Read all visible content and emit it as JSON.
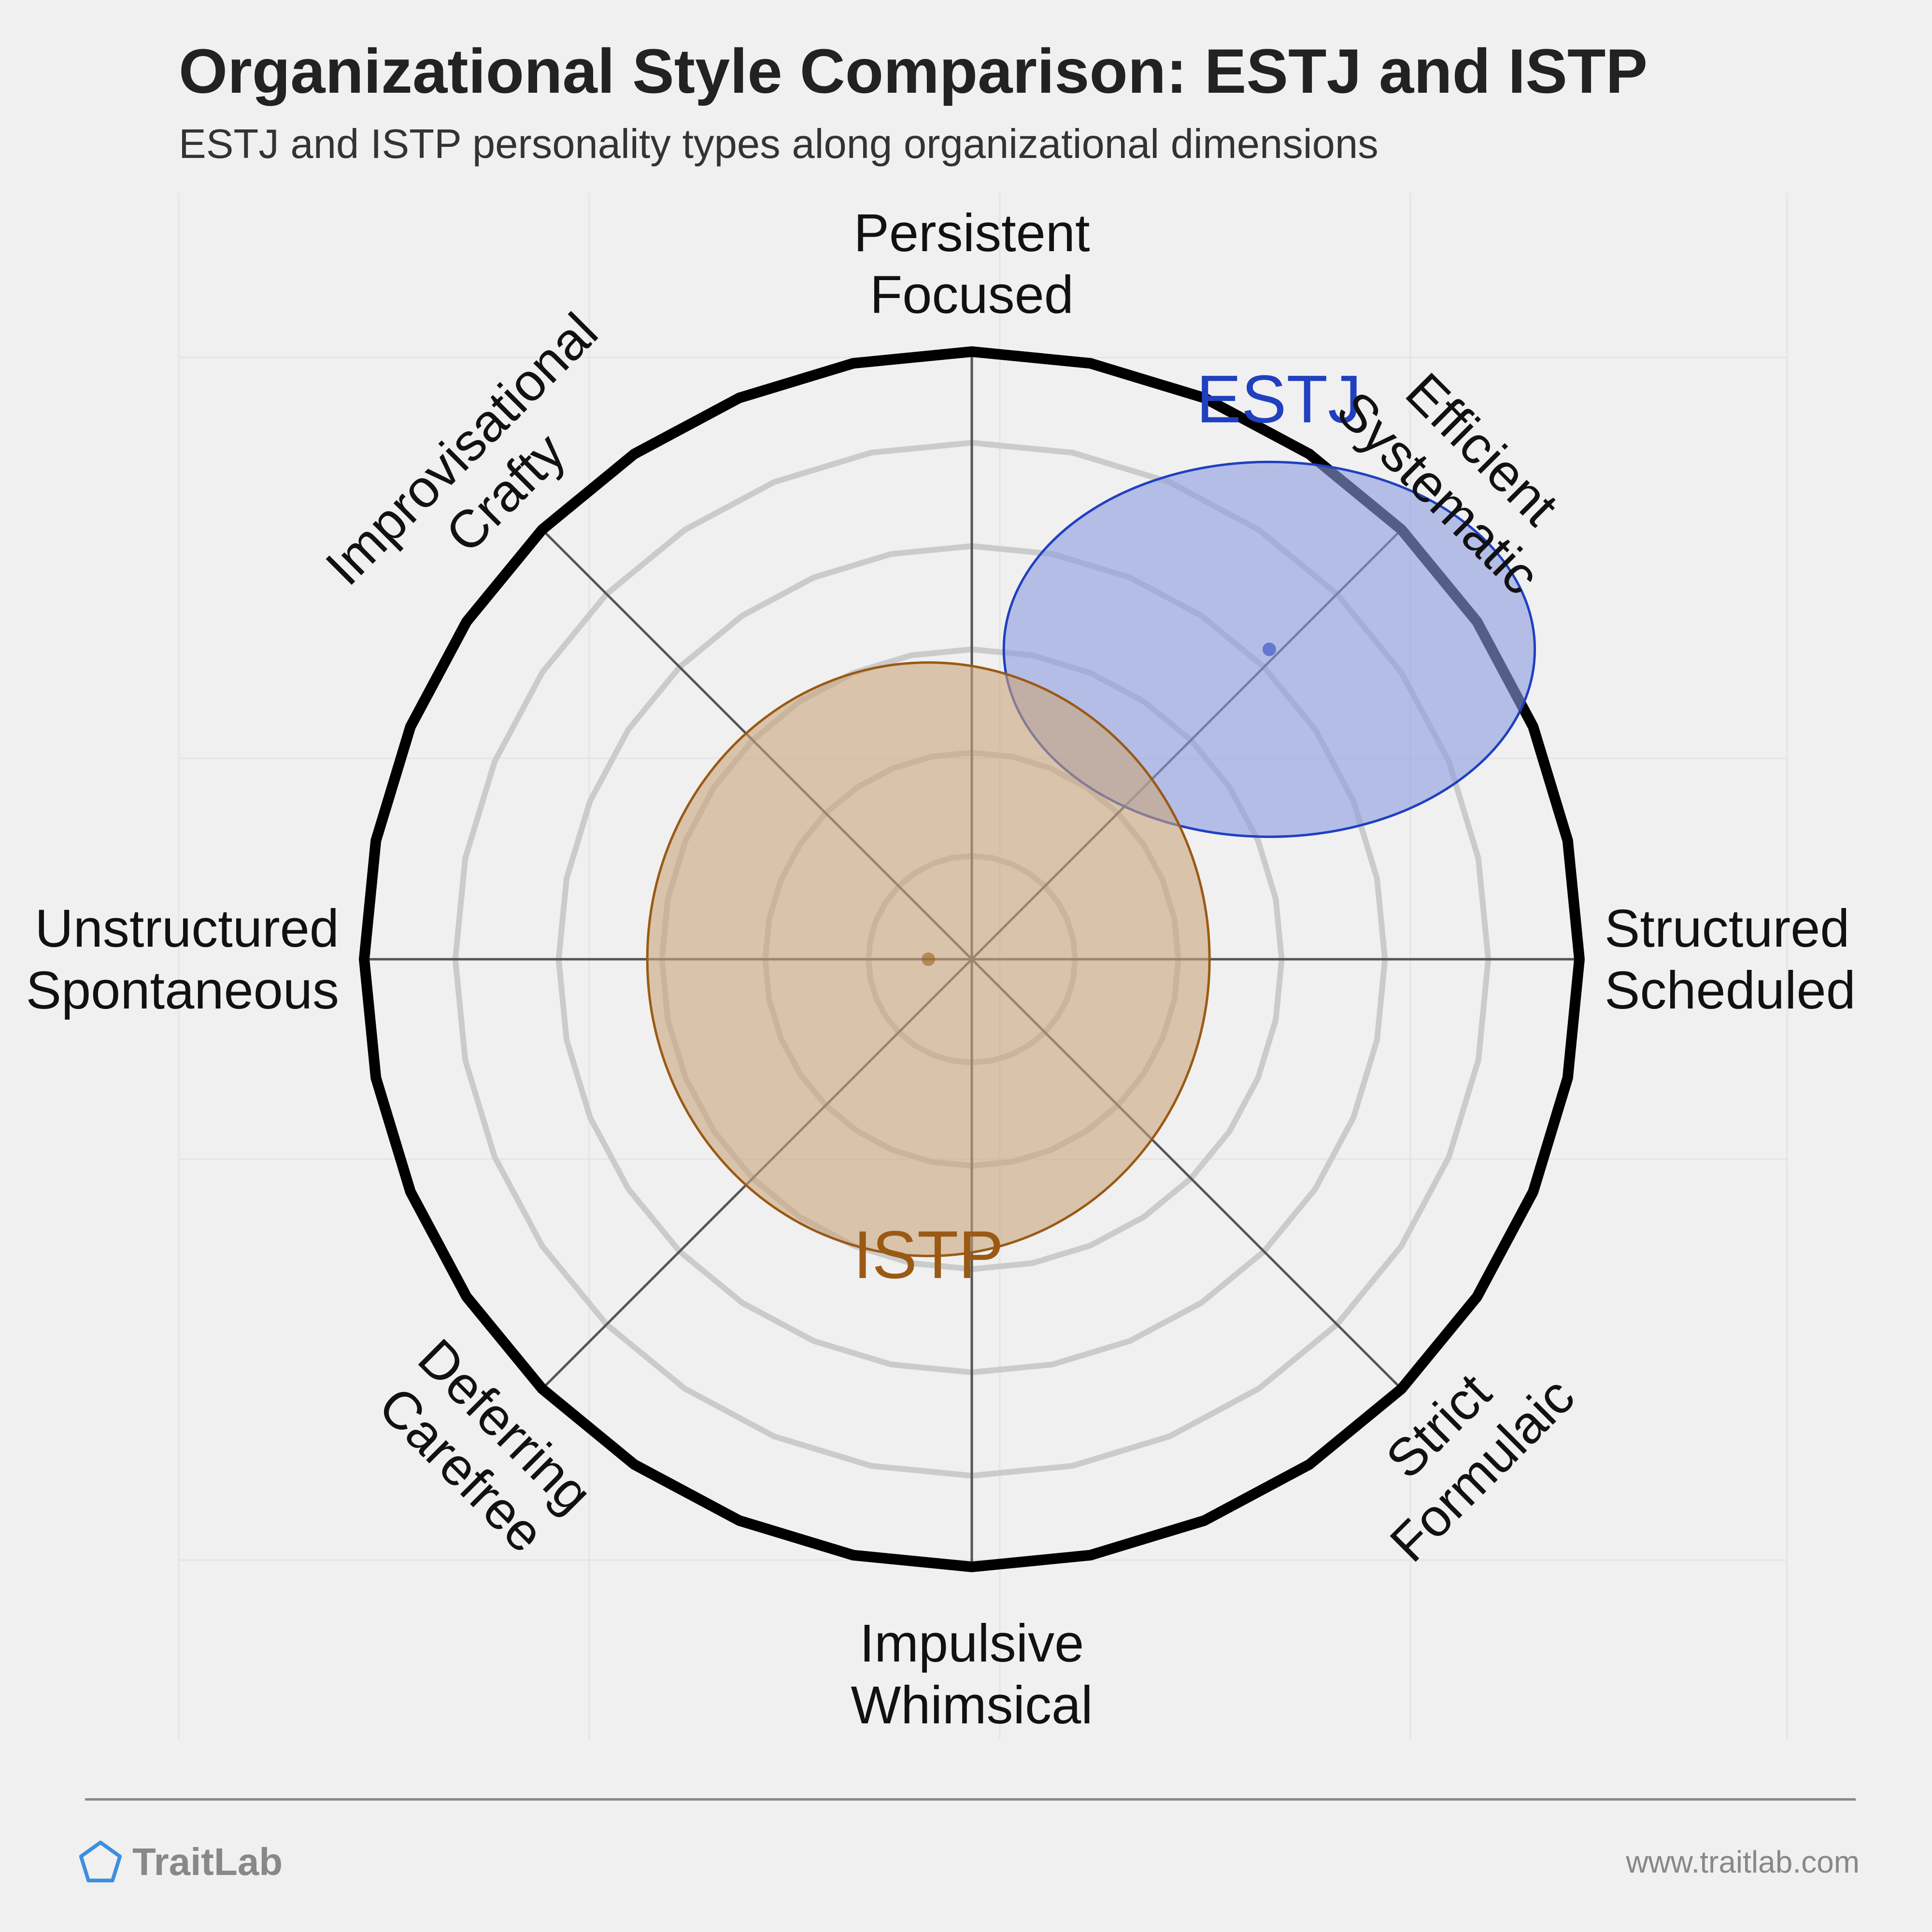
{
  "header": {
    "title": "Organizational Style Comparison: ESTJ and ISTP",
    "subtitle": "ESTJ and ISTP personality types along organizational dimensions"
  },
  "chart_data": {
    "type": "scatter",
    "subtype": "radial-compass",
    "axes": [
      {
        "direction": "top",
        "lines": [
          "Persistent",
          "Focused"
        ]
      },
      {
        "direction": "top-right",
        "lines": [
          "Efficient",
          "Systematic"
        ]
      },
      {
        "direction": "right",
        "lines": [
          "Structured",
          "Scheduled"
        ]
      },
      {
        "direction": "bottom-right",
        "lines": [
          "Strict",
          "Formulaic"
        ]
      },
      {
        "direction": "bottom",
        "lines": [
          "Impulsive",
          "Whimsical"
        ]
      },
      {
        "direction": "bottom-left",
        "lines": [
          "Deferring",
          "Carefree"
        ]
      },
      {
        "direction": "left",
        "lines": [
          "Unstructured",
          "Spontaneous"
        ]
      },
      {
        "direction": "top-left",
        "lines": [
          "Improvisational",
          "Crafty"
        ]
      }
    ],
    "range": [
      -1,
      1
    ],
    "gridlines": true,
    "series": [
      {
        "name": "ESTJ",
        "x": 0.48,
        "y": 0.5,
        "spread_x": 0.34,
        "spread_y": 0.24,
        "color": "#2040c0",
        "fill": "#8c9be0",
        "label_position": "above"
      },
      {
        "name": "ISTP",
        "x": -0.07,
        "y": 0.0,
        "spread_x": 0.36,
        "spread_y": 0.38,
        "color": "#9a5a14",
        "fill": "#c9a57c",
        "label_position": "below"
      }
    ]
  },
  "footer": {
    "brand": "TraitLab",
    "url": "www.traitlab.com",
    "logo_icon": "pentagon-icon",
    "logo_color": "#3b8fe0"
  }
}
